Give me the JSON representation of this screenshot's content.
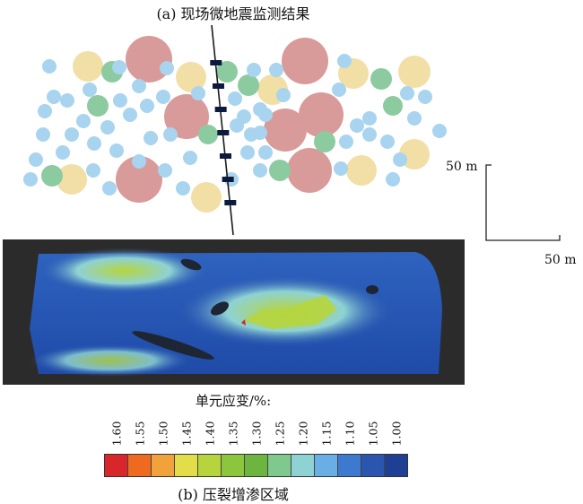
{
  "figure": {
    "panel_a_title": "(a) 现场微地震监测结果",
    "panel_b_title": "(b) 压裂增渗区域",
    "scale": {
      "vertical_label": "50 m",
      "horizontal_label": "50 m"
    }
  },
  "legend": {
    "title": "单元应变/%:",
    "ticks": [
      "1.60",
      "1.55",
      "1.50",
      "1.45",
      "1.40",
      "1.35",
      "1.30",
      "1.25",
      "1.20",
      "1.15",
      "1.10",
      "1.05",
      "1.00"
    ],
    "colors": [
      "#d8262a",
      "#ee6a1f",
      "#f2a23a",
      "#e3dd4a",
      "#b6d53d",
      "#8cc63c",
      "#6cb640",
      "#7fc98f",
      "#8ed2d4",
      "#6aaee6",
      "#3d79cf",
      "#2a56b0",
      "#1f3f95"
    ]
  },
  "microseismic_colors": {
    "large": "#d99a9a",
    "medium_yellow": "#f2dfa6",
    "medium_green": "#8ccba0",
    "small": "#a8d4ef",
    "well_line": "#1a1a1a",
    "perforation": "#0b1a3d"
  }
}
